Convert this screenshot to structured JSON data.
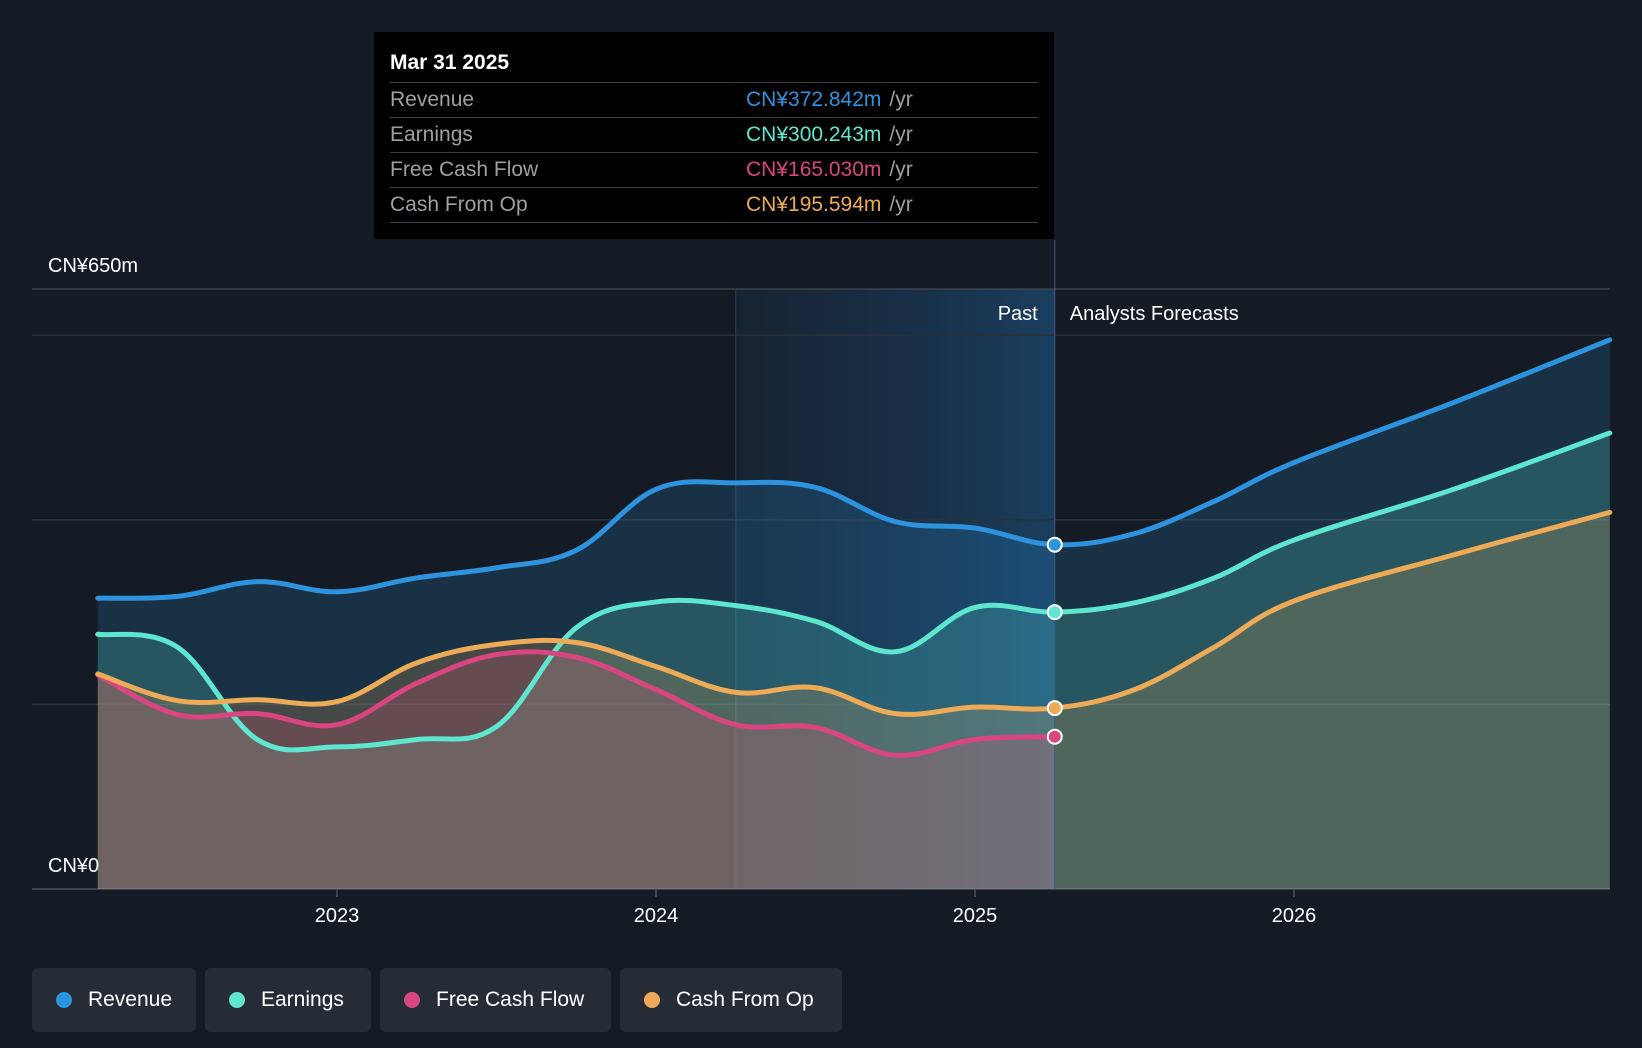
{
  "tooltip": {
    "date": "Mar 31 2025",
    "rows": [
      {
        "label": "Revenue",
        "value": "CN¥372.842m",
        "unit": "/yr",
        "color": "#2e93de"
      },
      {
        "label": "Earnings",
        "value": "CN¥300.243m",
        "unit": "/yr",
        "color": "#5ee6cf"
      },
      {
        "label": "Free Cash Flow",
        "value": "CN¥165.030m",
        "unit": "/yr",
        "color": "#d9467f"
      },
      {
        "label": "Cash From Op",
        "value": "CN¥195.594m",
        "unit": "/yr",
        "color": "#eeab57"
      }
    ]
  },
  "labels": {
    "past": "Past",
    "forecast": "Analysts Forecasts"
  },
  "legend": [
    {
      "label": "Revenue",
      "color": "#2e93de"
    },
    {
      "label": "Earnings",
      "color": "#5ee6cf"
    },
    {
      "label": "Free Cash Flow",
      "color": "#d9467f"
    },
    {
      "label": "Cash From Op",
      "color": "#eeab57"
    }
  ],
  "chart_data": {
    "type": "line",
    "title": "",
    "xlabel": "",
    "ylabel": "",
    "ylim": [
      0,
      650
    ],
    "y_tick_labels": [
      "CN¥650m",
      "CN¥0"
    ],
    "x_ticks": [
      2023,
      2024,
      2025,
      2026
    ],
    "xlim": [
      2022.1,
      2026.99
    ],
    "past_end": 2025.25,
    "highlight_start": 2024.25,
    "marker_x": 2025.25,
    "series": [
      {
        "name": "Revenue",
        "color": "#2e93de",
        "x": [
          2022.25,
          2022.5,
          2022.75,
          2023.0,
          2023.25,
          2023.5,
          2023.75,
          2024.0,
          2024.25,
          2024.5,
          2024.75,
          2025.0,
          2025.25,
          2025.5,
          2025.75,
          2026.0,
          2026.5,
          2026.99
        ],
        "y": [
          315,
          317,
          333,
          322,
          337,
          348,
          367,
          433,
          440,
          435,
          398,
          391,
          373,
          385,
          420,
          462,
          527,
          595
        ]
      },
      {
        "name": "Earnings",
        "color": "#5ee6cf",
        "x": [
          2022.25,
          2022.5,
          2022.75,
          2023.0,
          2023.25,
          2023.5,
          2023.75,
          2024.0,
          2024.25,
          2024.5,
          2024.75,
          2025.0,
          2025.25,
          2025.5,
          2025.75,
          2026.0,
          2026.5,
          2026.99
        ],
        "y": [
          276,
          262,
          162,
          154,
          162,
          176,
          283,
          311,
          307,
          290,
          257,
          305,
          300,
          310,
          337,
          378,
          433,
          494
        ]
      },
      {
        "name": "Free Cash Flow",
        "color": "#d9467f",
        "x": [
          2022.25,
          2022.5,
          2022.75,
          2023.0,
          2023.25,
          2023.5,
          2023.75,
          2024.0,
          2024.25,
          2024.5,
          2024.75,
          2025.0,
          2025.25
        ],
        "y": [
          232,
          189,
          190,
          178,
          223,
          254,
          251,
          216,
          178,
          175,
          145,
          162,
          165
        ]
      },
      {
        "name": "Cash From Op",
        "color": "#eeab57",
        "x": [
          2022.25,
          2022.5,
          2022.75,
          2023.0,
          2023.25,
          2023.5,
          2023.75,
          2024.0,
          2024.25,
          2024.5,
          2024.75,
          2025.0,
          2025.25,
          2025.5,
          2025.75,
          2026.0,
          2026.5,
          2026.99
        ],
        "y": [
          233,
          204,
          205,
          203,
          245,
          265,
          267,
          241,
          213,
          218,
          190,
          197,
          196,
          216,
          262,
          312,
          362,
          408
        ]
      }
    ]
  }
}
